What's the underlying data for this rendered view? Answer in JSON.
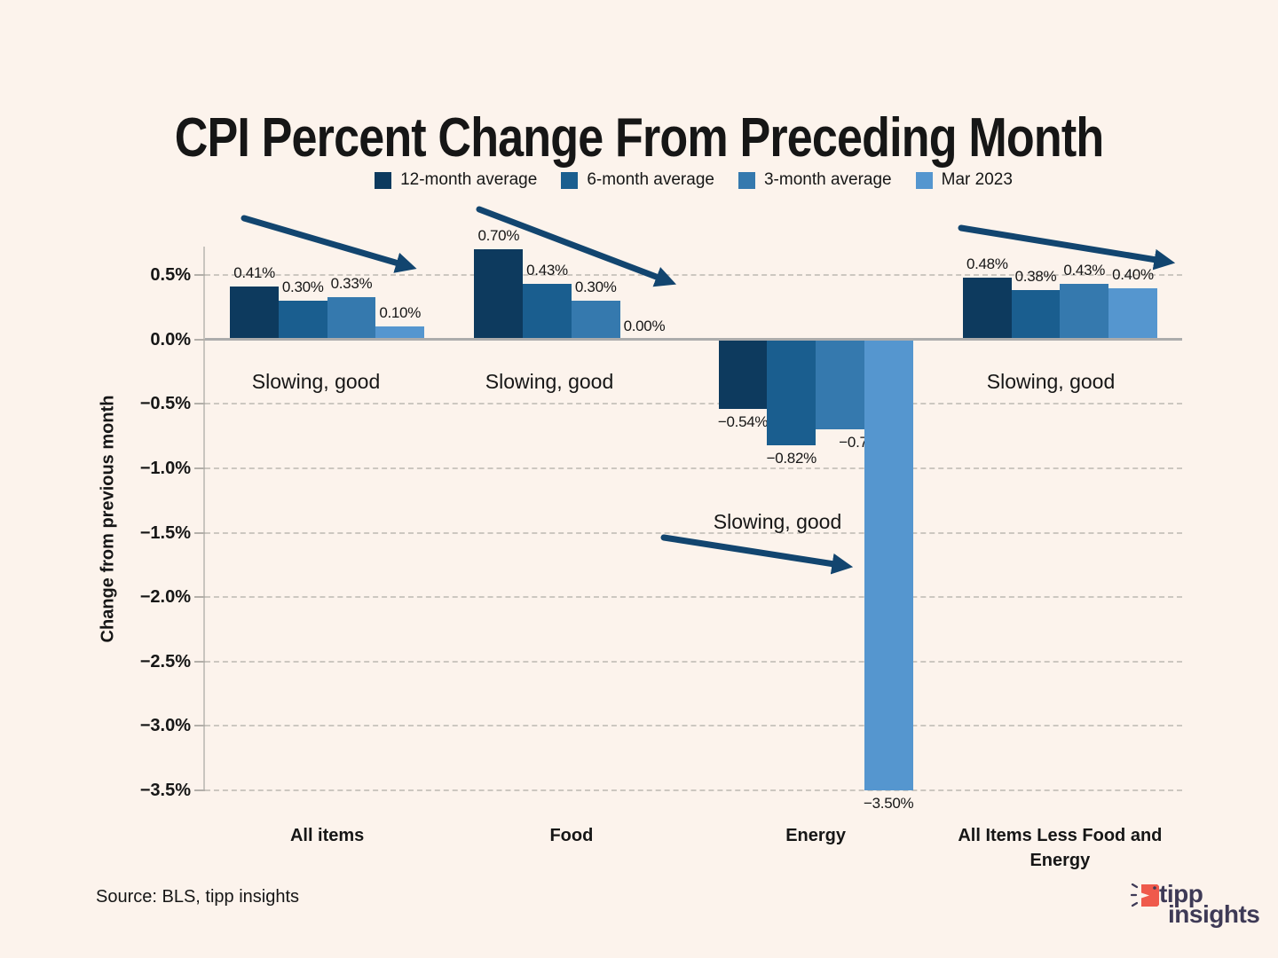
{
  "title": "CPI Percent Change From Preceding Month",
  "source_text": "Source: BLS, tipp insights",
  "annotations": [
    {
      "text": "Slowing, good"
    },
    {
      "text": "Slowing, good"
    },
    {
      "text": "Slowing, good"
    },
    {
      "text": "Slowing, good"
    }
  ],
  "logo": {
    "word1": "tipp",
    "word2": "insights",
    "icon_color": "#EF5A4C",
    "text_color": "#3E3A56"
  },
  "colors": {
    "background": "#FCF3EC",
    "arrow": "#12456F",
    "zero_line": "#ACACAC",
    "gridline": "#CCC7C0",
    "text": "#161616"
  },
  "chart_data": {
    "type": "bar",
    "title": "CPI Percent Change From Preceding Month",
    "ylabel": "Change from previous month",
    "xlabel": "",
    "ylim": [
      -3.5,
      0.5
    ],
    "ytick_step": 0.5,
    "ytick_labels": [
      "0.5%",
      "0.0%",
      "−0.5%",
      "−1.0%",
      "−1.5%",
      "−2.0%",
      "−2.5%",
      "−3.0%",
      "−3.5%"
    ],
    "grid": "dashed horizontal gridlines, solid zero line",
    "legend_position": "top center",
    "categories": [
      "All items",
      "Food",
      "Energy",
      "All Items Less Food and Energy"
    ],
    "series": [
      {
        "name": "12-month average",
        "color": "#0D3A5E",
        "values": [
          0.41,
          0.7,
          -0.54,
          0.48
        ],
        "labels": [
          "0.41%",
          "0.70%",
          "−0.54%",
          "0.48%"
        ]
      },
      {
        "name": "6-month average",
        "color": "#1A5E8F",
        "values": [
          0.3,
          0.43,
          -0.82,
          0.38
        ],
        "labels": [
          "0.30%",
          "0.43%",
          "−0.82%",
          "0.38%"
        ]
      },
      {
        "name": "3-month average",
        "color": "#3579AE",
        "values": [
          0.33,
          0.3,
          -0.7,
          0.43
        ],
        "labels": [
          "0.33%",
          "0.30%",
          "−0.70%",
          "0.43%"
        ]
      },
      {
        "name": "Mar 2023",
        "color": "#5596CF",
        "values": [
          0.1,
          0.0,
          -3.5,
          0.4
        ],
        "labels": [
          "0.10%",
          "0.00%",
          "−3.50%",
          "0.40%"
        ]
      }
    ]
  }
}
